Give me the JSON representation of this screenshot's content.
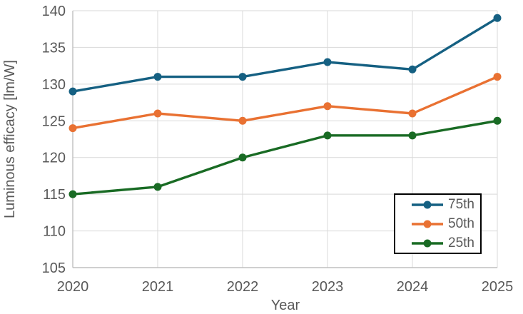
{
  "chart_data": {
    "type": "line",
    "title": "",
    "xlabel": "Year",
    "ylabel": "Luminous efficacy [lm/W]",
    "x_categories": [
      "2020",
      "2021",
      "2022",
      "2023",
      "2024",
      "2025"
    ],
    "yticks": [
      105,
      110,
      115,
      120,
      125,
      130,
      135,
      140
    ],
    "ylim": [
      105,
      140
    ],
    "grid": true,
    "legend_position": "inside-bottom-right",
    "series": [
      {
        "name": "75th",
        "color": "#156082",
        "values": [
          129,
          131,
          131,
          133,
          132,
          139
        ]
      },
      {
        "name": "50th",
        "color": "#E97132",
        "values": [
          124,
          126,
          125,
          127,
          126,
          131
        ]
      },
      {
        "name": "25th",
        "color": "#196B24",
        "values": [
          115,
          116,
          120,
          123,
          123,
          125
        ]
      }
    ]
  },
  "style": {
    "text_color": "#595959",
    "grid_color": "#D9D9D9",
    "axis_color": "#BFBFBF",
    "legend_border": "#000000",
    "background": "#FFFFFF"
  }
}
